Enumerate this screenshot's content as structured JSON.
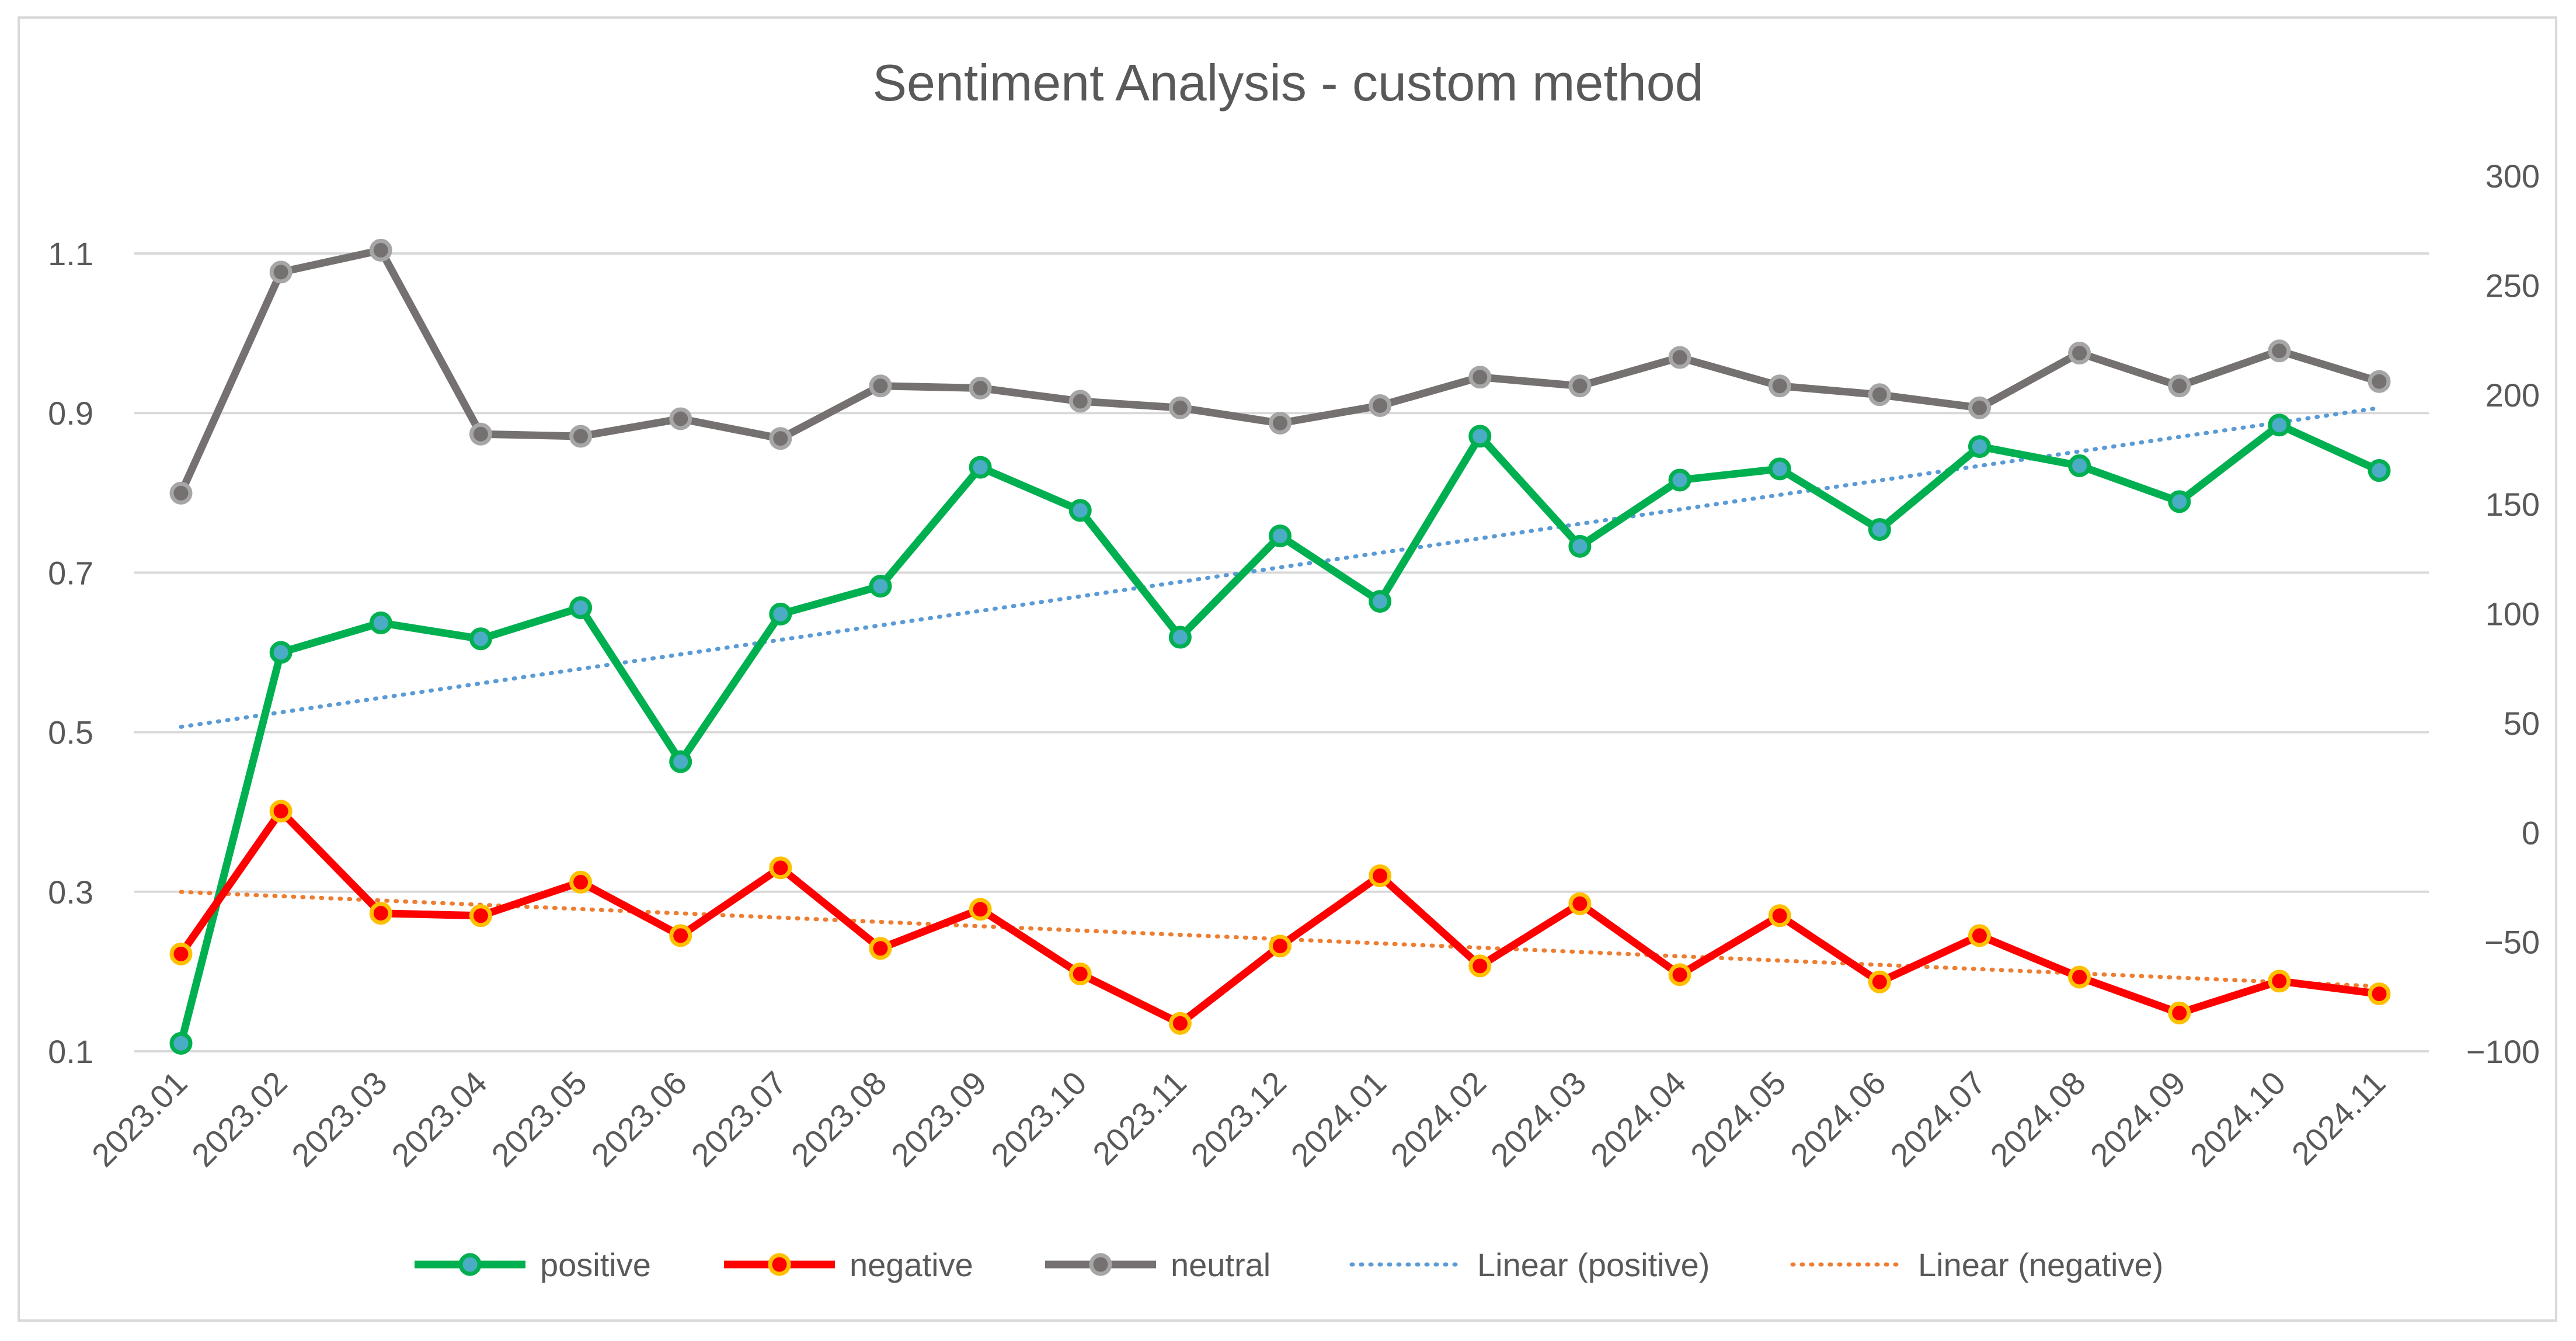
{
  "chart_data": {
    "type": "line",
    "title": "Sentiment Analysis - custom method",
    "categories": [
      "2023.01",
      "2023.02",
      "2023.03",
      "2023.04",
      "2023.05",
      "2023.06",
      "2023.07",
      "2023.08",
      "2023.09",
      "2023.10",
      "2023.11",
      "2023.12",
      "2024.01",
      "2024.02",
      "2024.03",
      "2024.04",
      "2024.05",
      "2024.06",
      "2024.07",
      "2024.08",
      "2024.09",
      "2024.10",
      "2024.11"
    ],
    "y_left": {
      "min": 0.1,
      "max": 1.1,
      "ticks": [
        "0.1",
        "0.3",
        "0.5",
        "0.7",
        "0.9",
        "1.1"
      ],
      "tick_values": [
        0.1,
        0.3,
        0.5,
        0.7,
        0.9,
        1.1
      ]
    },
    "y_right": {
      "min": -100,
      "max": 300,
      "ticks": [
        "−100",
        "−50",
        "0",
        "50",
        "100",
        "150",
        "200",
        "250",
        "300"
      ],
      "tick_values": [
        -100,
        -50,
        0,
        50,
        100,
        150,
        200,
        250,
        300
      ]
    },
    "grid": true,
    "legend_position": "bottom",
    "series": [
      {
        "name": "positive",
        "axis": "left",
        "color": "#00b050",
        "marker_fill": "#4bacc6",
        "marker": true,
        "values": [
          0.11,
          0.6,
          0.637,
          0.617,
          0.656,
          0.463,
          0.648,
          0.683,
          0.832,
          0.778,
          0.619,
          0.746,
          0.664,
          0.871,
          0.733,
          0.816,
          0.83,
          0.754,
          0.858,
          0.834,
          0.789,
          0.885,
          0.828
        ]
      },
      {
        "name": "negative",
        "axis": "left",
        "color": "#ff0000",
        "marker_fill": "#ff0000",
        "marker_stroke": "#ffc000",
        "marker": true,
        "values": [
          0.222,
          0.401,
          0.273,
          0.27,
          0.312,
          0.245,
          0.33,
          0.229,
          0.278,
          0.197,
          0.135,
          0.232,
          0.32,
          0.207,
          0.285,
          0.196,
          0.27,
          0.187,
          0.245,
          0.193,
          0.148,
          0.188,
          0.172
        ]
      },
      {
        "name": "neutral",
        "axis": "right",
        "color": "#767171",
        "marker_fill": "#767171",
        "marker_stroke": "#a6a6a6",
        "marker": true,
        "values": [
          155,
          256,
          266,
          182,
          181,
          189,
          180,
          204,
          203,
          197,
          194,
          187,
          195,
          208,
          204,
          217,
          204,
          200,
          194,
          219,
          204,
          220,
          206
        ]
      },
      {
        "name": "Linear (positive)",
        "axis": "left",
        "color": "#5b9bd5",
        "dotted": true,
        "trend_of": "positive"
      },
      {
        "name": "Linear (negative)",
        "axis": "left",
        "color": "#ed7d31",
        "dotted": true,
        "trend_of": "negative"
      }
    ]
  }
}
